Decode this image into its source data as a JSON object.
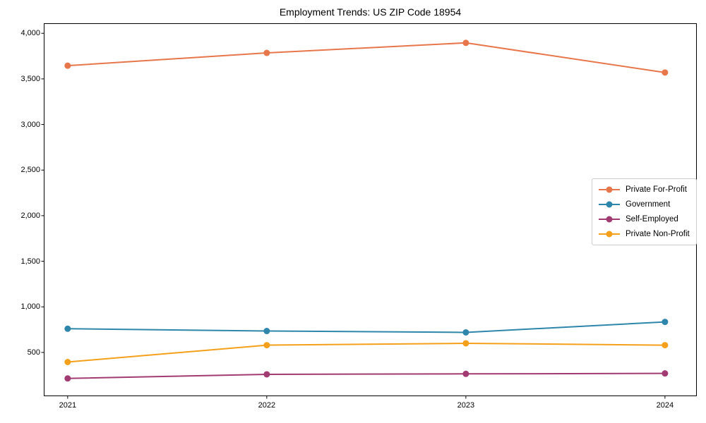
{
  "chart_data": {
    "type": "line",
    "title": "Employment Trends: US ZIP Code 18954",
    "xlabel": "",
    "ylabel": "",
    "x": [
      2021,
      2022,
      2023,
      2024
    ],
    "x_tick_labels": [
      "2021",
      "2022",
      "2023",
      "2024"
    ],
    "series": [
      {
        "name": "Private For-Profit",
        "color": "#E8764B",
        "values": [
          3645,
          3785,
          3895,
          3570
        ]
      },
      {
        "name": "Government",
        "color": "#2E86AB",
        "values": [
          760,
          735,
          720,
          835
        ]
      },
      {
        "name": "Self-Employed",
        "color": "#A23B72",
        "values": [
          215,
          260,
          265,
          270
        ]
      },
      {
        "name": "Private Non-Profit",
        "color": "#F5A01B",
        "values": [
          395,
          580,
          600,
          580
        ]
      }
    ],
    "xlim": [
      2020.88,
      2024.16
    ],
    "ylim": [
      20,
      4110
    ],
    "yticks": [
      500,
      1000,
      1500,
      2000,
      2500,
      3000,
      3500,
      4000
    ],
    "ytick_labels": [
      "500",
      "1,000",
      "1,500",
      "2,000",
      "2,500",
      "3,000",
      "3,500",
      "4,000"
    ],
    "grid": false,
    "legend": {
      "position": "center-right",
      "entries": [
        "Private For-Profit",
        "Government",
        "Self-Employed",
        "Private Non-Profit"
      ]
    },
    "style": {
      "background": "#ffffff",
      "spine_color": "#000000",
      "tick_color": "#000000",
      "line_width": 2,
      "marker_radius": 4.5
    }
  }
}
